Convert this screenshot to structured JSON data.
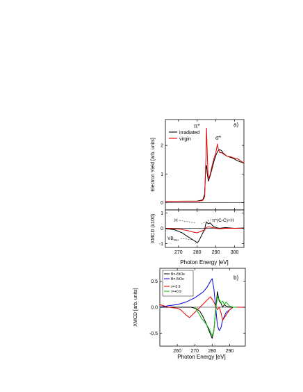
{
  "colors": {
    "irradiated": "#000000",
    "virgin": "#e00000",
    "black": "#000000",
    "red": "#e00000",
    "blue": "#0000dd",
    "green": "#00bb00"
  },
  "chart_data": [
    {
      "id": "a-top",
      "type": "line",
      "panel_label": "a)",
      "ylabel": "Electron Yield [arb. units]",
      "xlim": [
        263,
        305
      ],
      "ylim": [
        -0.25,
        2.9
      ],
      "yticks": [
        0,
        1,
        2
      ],
      "show_xtick_labels": false,
      "legend": {
        "placement": "top-left",
        "entries": [
          "irradiated",
          "virgin"
        ]
      },
      "annotations": {
        "pi_star": "π*",
        "sigma_star": "σ*"
      },
      "series": [
        {
          "name": "irradiated",
          "color": "#000000",
          "x": [
            263,
            280,
            283,
            284,
            284.5,
            285,
            285.4,
            286,
            287,
            288,
            289,
            290,
            291,
            292,
            293,
            294,
            296,
            298,
            300,
            302,
            305
          ],
          "y": [
            0.05,
            0.06,
            0.1,
            0.3,
            1.15,
            1.3,
            1.0,
            0.75,
            0.95,
            1.2,
            1.45,
            1.65,
            1.8,
            1.85,
            1.82,
            1.72,
            1.62,
            1.58,
            1.52,
            1.45,
            1.38
          ]
        },
        {
          "name": "virgin",
          "color": "#e00000",
          "x": [
            263,
            280,
            283,
            284,
            284.7,
            285,
            285.4,
            285.8,
            286.3,
            287,
            288,
            289,
            290,
            290.8,
            291.2,
            292,
            293,
            294,
            296,
            298,
            300,
            302,
            305
          ],
          "y": [
            0.05,
            0.05,
            0.08,
            0.2,
            1.6,
            2.6,
            1.7,
            0.95,
            0.85,
            1.0,
            1.3,
            1.55,
            1.75,
            2.05,
            1.9,
            1.75,
            1.75,
            1.7,
            1.62,
            1.6,
            1.55,
            1.52,
            1.38
          ]
        }
      ]
    },
    {
      "id": "a-bottom",
      "type": "line",
      "xlabel": "Photon Energy [eV]",
      "ylabel": "XMCD (x100)",
      "xlim": [
        263,
        305
      ],
      "ylim": [
        -1.25,
        1.2
      ],
      "xticks": [
        270,
        280,
        290,
        300
      ],
      "yticks": [
        -1,
        0,
        1
      ],
      "annotations": {
        "h": "H",
        "pi_cc": "π*(C-C)+H",
        "vb": "VB",
        "vb_sub": "Max"
      },
      "series": [
        {
          "name": "irradiated",
          "color": "#000000",
          "x": [
            263,
            268,
            272,
            275,
            277,
            279,
            280,
            281,
            282,
            283,
            284,
            284.5,
            285,
            286,
            287,
            288,
            289,
            290,
            292,
            295,
            300,
            305
          ],
          "y": [
            -0.02,
            -0.1,
            -0.3,
            -0.55,
            -0.7,
            -0.85,
            -0.95,
            -0.8,
            -0.55,
            -0.3,
            -0.1,
            0.25,
            0.4,
            0.3,
            0.35,
            0.2,
            0.1,
            0.05,
            0.0,
            0.05,
            0.0,
            0.02
          ]
        },
        {
          "name": "virgin",
          "color": "#e00000",
          "x": [
            263,
            270,
            275,
            278,
            280,
            282,
            284,
            285,
            286,
            288,
            290,
            292,
            295,
            300,
            305
          ],
          "y": [
            0.0,
            -0.05,
            -0.15,
            -0.25,
            -0.3,
            -0.2,
            -0.1,
            0.05,
            0.1,
            0.05,
            0.0,
            -0.03,
            0.0,
            0.0,
            0.0
          ]
        }
      ]
    },
    {
      "id": "b",
      "type": "line",
      "panel_label": "b)",
      "xlabel": "Photon Energy [eV]",
      "ylabel": "XMCD [arb. units]",
      "xlim": [
        250,
        299
      ],
      "ylim": [
        -0.75,
        0.75
      ],
      "xticks": [
        260,
        270,
        280,
        290
      ],
      "yticks": [
        -0.5,
        0.0,
        0.5
      ],
      "yticklabels": [
        "-0.5",
        "0.0",
        "0.5"
      ],
      "legend": {
        "placement": "top-left",
        "entries": [
          "B=+5tOe",
          "B=-5tOe",
          "τ=-0.9",
          "τ=+0.9"
        ]
      },
      "series": [
        {
          "name": "B=+5tOe",
          "color": "#000000",
          "x": [
            250,
            260,
            268,
            271,
            273,
            275,
            277,
            279,
            280,
            281,
            282,
            283,
            284,
            285,
            286,
            287,
            288,
            290,
            295,
            299
          ],
          "y": [
            0.0,
            0.0,
            0.0,
            -0.03,
            -0.08,
            -0.2,
            -0.35,
            -0.52,
            -0.6,
            -0.45,
            -0.05,
            0.3,
            0.12,
            0.08,
            0.0,
            0.05,
            0.02,
            0.0,
            0.0,
            0.0
          ]
        },
        {
          "name": "B=-5tOe",
          "color": "#0000dd",
          "x": [
            250,
            255,
            260,
            265,
            270,
            273,
            275,
            277,
            279,
            280,
            281,
            282,
            283,
            284,
            285,
            286,
            288,
            290,
            292,
            295,
            299
          ],
          "y": [
            0.0,
            0.03,
            0.05,
            0.1,
            0.18,
            0.25,
            0.3,
            0.38,
            0.5,
            0.55,
            0.35,
            0.0,
            -0.35,
            -0.45,
            -0.4,
            -0.25,
            -0.1,
            -0.05,
            0.0,
            0.0,
            0.0
          ]
        },
        {
          "name": "τ=-0.9",
          "color": "#e00000",
          "x": [
            250,
            255,
            260,
            262,
            265,
            267,
            270,
            273,
            276,
            279,
            281,
            283,
            284,
            285,
            286,
            288,
            290,
            292,
            295,
            299
          ],
          "y": [
            0.05,
            0.0,
            -0.02,
            -0.05,
            -0.15,
            -0.2,
            -0.1,
            0.0,
            0.1,
            0.2,
            0.1,
            -0.05,
            0.0,
            -0.1,
            -0.25,
            -0.15,
            -0.05,
            0.0,
            0.0,
            0.0
          ]
        },
        {
          "name": "τ=+0.9",
          "color": "#00bb00",
          "x": [
            270,
            272,
            274,
            276,
            278,
            280,
            281,
            282,
            283,
            284,
            285,
            286,
            287,
            288,
            290,
            292,
            294
          ],
          "y": [
            0.0,
            -0.1,
            -0.22,
            -0.3,
            -0.4,
            -0.55,
            -0.45,
            -0.05,
            0.2,
            0.15,
            0.08,
            0.12,
            0.05,
            0.1,
            0.02,
            0.0,
            0.0
          ]
        }
      ]
    }
  ]
}
